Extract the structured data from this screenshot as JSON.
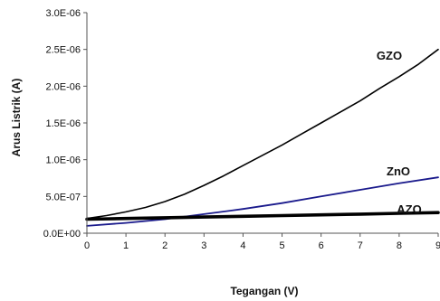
{
  "chart_data": {
    "type": "line",
    "xlabel": "Tegangan (V)",
    "ylabel": "Arus Listrik (A)",
    "xlim": [
      0,
      9
    ],
    "ylim": [
      0,
      3e-06
    ],
    "x_ticks": [
      "0",
      "1",
      "2",
      "3",
      "4",
      "5",
      "6",
      "7",
      "8",
      "9"
    ],
    "y_ticks": [
      "0.0E+00",
      "5.0E-07",
      "1.0E-06",
      "1.5E-06",
      "2.0E-06",
      "2.5E-06",
      "3.0E-06"
    ],
    "grid": false,
    "legend": "none",
    "series": [
      {
        "name": "GZO",
        "color": "#000000",
        "x": [
          0,
          0.5,
          1,
          1.5,
          2,
          2.5,
          3,
          3.5,
          4,
          4.5,
          5,
          5.5,
          6,
          6.5,
          7,
          7.5,
          8,
          8.5,
          9
        ],
        "y": [
          2e-07,
          2.4e-07,
          2.9e-07,
          3.5e-07,
          4.3e-07,
          5.3e-07,
          6.5e-07,
          7.8e-07,
          9.2e-07,
          1.06e-06,
          1.2e-06,
          1.35e-06,
          1.5e-06,
          1.65e-06,
          1.8e-06,
          1.97e-06,
          2.13e-06,
          2.3e-06,
          2.5e-06
        ]
      },
      {
        "name": "ZnO",
        "color": "#1a1a8c",
        "x": [
          0,
          1,
          2,
          3,
          4,
          5,
          6,
          7,
          8,
          9
        ],
        "y": [
          1e-07,
          1.4e-07,
          1.9e-07,
          2.6e-07,
          3.3e-07,
          4.1e-07,
          5e-07,
          5.9e-07,
          6.8e-07,
          7.6e-07
        ]
      },
      {
        "name": "AZO",
        "color": "#000000",
        "x": [
          0,
          1,
          2,
          3,
          4,
          5,
          6,
          7,
          8,
          9
        ],
        "y": [
          1.9e-07,
          2e-07,
          2.1e-07,
          2.2e-07,
          2.3e-07,
          2.4e-07,
          2.5e-07,
          2.6e-07,
          2.7e-07,
          2.8e-07
        ]
      }
    ]
  }
}
